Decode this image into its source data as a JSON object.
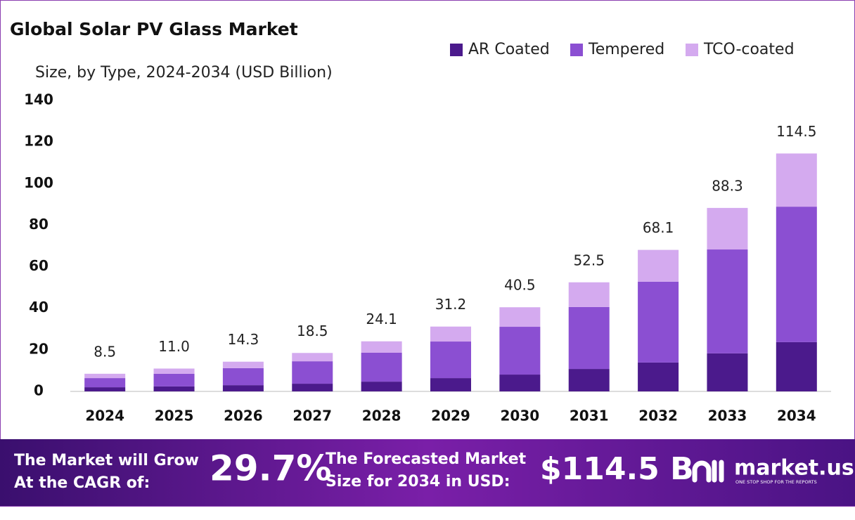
{
  "chart_data": {
    "type": "stacked_bar",
    "title": "Global Solar PV Glass Market",
    "subtitle": "Size, by Type, 2024-2034 (USD Billion)",
    "categories": [
      "2024",
      "2025",
      "2026",
      "2027",
      "2028",
      "2029",
      "2030",
      "2031",
      "2032",
      "2033",
      "2034"
    ],
    "series": [
      {
        "name": "AR Coated",
        "color": "#4b1a8c",
        "values": [
          2.0,
          2.4,
          3.0,
          3.7,
          4.7,
          6.4,
          8.1,
          10.8,
          13.9,
          18.3,
          23.7
        ]
      },
      {
        "name": "Tempered",
        "color": "#8b4fd2",
        "values": [
          4.4,
          6.1,
          8.2,
          10.8,
          13.9,
          17.6,
          23.0,
          29.8,
          38.9,
          50.0,
          65.2
        ]
      },
      {
        "name": "TCO-coated",
        "color": "#d4aaef",
        "values": [
          2.1,
          2.5,
          3.1,
          4.0,
          5.5,
          7.2,
          9.4,
          11.9,
          15.3,
          20.0,
          25.6
        ]
      }
    ],
    "totals": {
      "values": [
        8.5,
        11.0,
        14.3,
        18.5,
        24.1,
        31.2,
        40.5,
        52.5,
        68.1,
        88.3,
        114.5
      ],
      "value_labels": [
        "8.5",
        "11.0",
        "14.3",
        "18.5",
        "24.1",
        "31.2",
        "40.5",
        "52.5",
        "68.1",
        "88.3",
        "114.5"
      ]
    },
    "ylim": [
      0,
      140
    ],
    "yticks": [
      0,
      20,
      40,
      60,
      80,
      100,
      120,
      140
    ],
    "grid": false,
    "legend": "top-right"
  },
  "banner": {
    "cagr_text": [
      "The Market will Grow",
      "At the CAGR of:"
    ],
    "cagr": "29.7%",
    "forecast_text": [
      "The Forecasted Market",
      "Size for 2034 in USD:"
    ],
    "forecast": "$114.5 B",
    "brand": "market.us",
    "tagline": "ONE STOP SHOP FOR THE REPORTS"
  }
}
